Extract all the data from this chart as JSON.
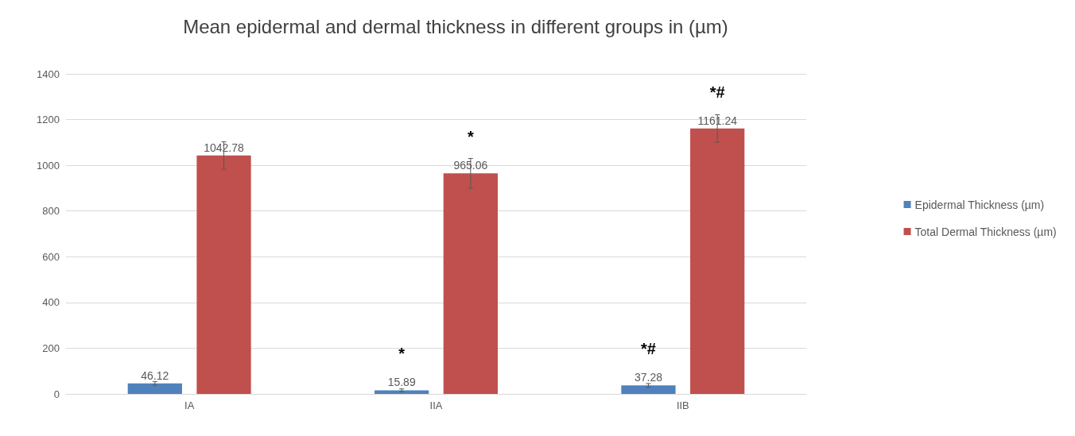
{
  "chart_data": {
    "type": "bar",
    "title": "Mean epidermal and dermal thickness in different groups in (µm)",
    "categories": [
      "IA",
      "IIA",
      "IIB"
    ],
    "series": [
      {
        "name": "Epidermal Thickness (µm)",
        "color": "#4f81bd",
        "values": [
          46.12,
          15.89,
          37.28
        ],
        "errors": [
          8,
          6,
          8
        ]
      },
      {
        "name": "Total Dermal Thickness (µm)",
        "color": "#c0504d",
        "values": [
          1042.78,
          965.06,
          1161.24
        ],
        "errors": [
          60,
          65,
          60
        ]
      }
    ],
    "ylim": [
      0,
      1400
    ],
    "yticks": [
      0,
      200,
      400,
      600,
      800,
      1000,
      1200,
      1400
    ],
    "grid": "y",
    "legend": "right",
    "data_labels": true,
    "annotations": [
      "*",
      "*",
      "*#",
      "*#"
    ]
  }
}
